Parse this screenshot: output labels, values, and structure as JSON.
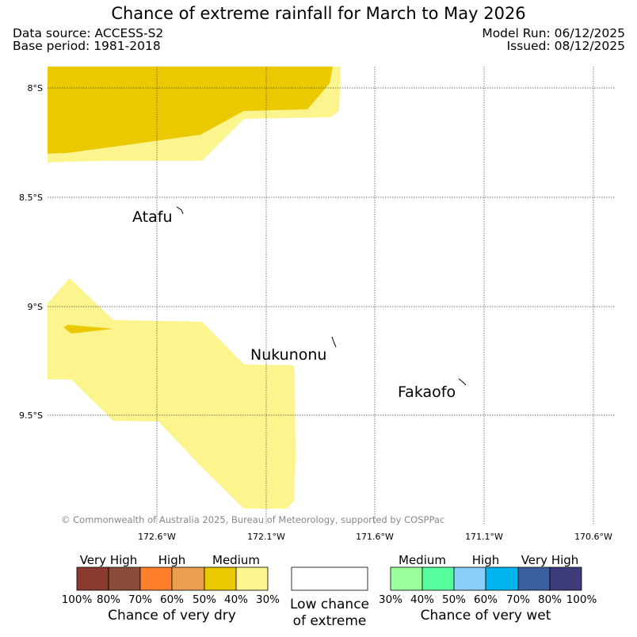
{
  "header": {
    "title": "Chance of extreme rainfall for March to May 2026",
    "data_source": "Data source: ACCESS-S2",
    "base_period": "Base period: 1981-2018",
    "model_run": "Model Run: 06/12/2025",
    "issued": "Issued: 08/12/2025"
  },
  "map": {
    "lat_labels": [
      "8°S",
      "8.5°S",
      "9°S",
      "9.5°S"
    ],
    "lon_labels": [
      "172.6°W",
      "172.1°W",
      "171.6°W",
      "171.1°W",
      "170.6°W"
    ],
    "places": {
      "atafu": "Atafu",
      "nukunonu": "Nukunonu",
      "fakaofo": "Fakaofo"
    },
    "copyright": "© Commonwealth of Australia 2025, Bureau of Meteorology, supported by COSPPac",
    "colors": {
      "dry_medium_dark": "#ebc900",
      "dry_medium_light": "#fcf48c"
    }
  },
  "legend": {
    "dry": {
      "categories": [
        "Very High",
        "High",
        "Medium"
      ],
      "ticks": [
        "100%",
        "80%",
        "70%",
        "60%",
        "50%",
        "40%",
        "30%"
      ],
      "caption": "Chance of very dry",
      "colors": [
        "#8b3a30",
        "#8b4c3a",
        "#ff7f2a",
        "#eb9e4e",
        "#ebc900",
        "#fcf48c"
      ]
    },
    "low": {
      "line1": "Low chance",
      "line2": "of extreme"
    },
    "wet": {
      "categories": [
        "Medium",
        "High",
        "Very High"
      ],
      "ticks": [
        "30%",
        "40%",
        "50%",
        "60%",
        "70%",
        "80%",
        "100%"
      ],
      "caption": "Chance of very wet",
      "colors": [
        "#99ff99",
        "#55ff9e",
        "#87cefa",
        "#00b4ee",
        "#3a5e9e",
        "#3e3b7a"
      ]
    }
  }
}
